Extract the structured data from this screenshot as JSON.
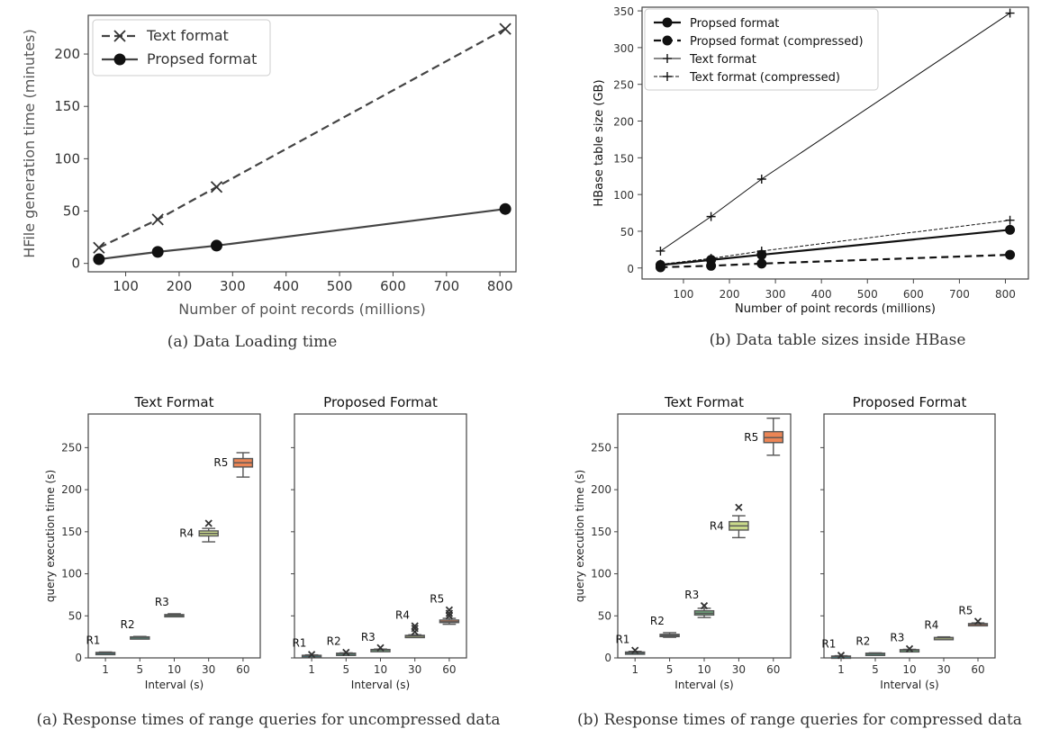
{
  "chart_data": [
    {
      "type": "line",
      "caption": "(a) Data Loading time",
      "xlabel": "Number of point records (millions)",
      "ylabel": "HFile generation time (minutes)",
      "xlim": [
        30,
        830
      ],
      "ylim": [
        -8,
        237
      ],
      "xticks": [
        100,
        200,
        300,
        400,
        500,
        600,
        700,
        800
      ],
      "yticks": [
        0,
        50,
        100,
        150,
        200
      ],
      "legend": "top-left",
      "grid": false,
      "series": [
        {
          "name": "Text format",
          "style": "dashed",
          "marker": "x",
          "x": [
            50,
            160,
            270,
            810
          ],
          "y": [
            15,
            42,
            73,
            224
          ]
        },
        {
          "name": "Propsed format",
          "style": "solid",
          "marker": "o",
          "x": [
            50,
            160,
            270,
            810
          ],
          "y": [
            4,
            11,
            17,
            52
          ]
        }
      ]
    },
    {
      "type": "line",
      "caption": "(b) Data table sizes inside HBase",
      "xlabel": "Number of point records (millions)",
      "ylabel": "HBase table size (GB)",
      "xlim": [
        10,
        850
      ],
      "ylim": [
        -15,
        355
      ],
      "xticks": [
        100,
        200,
        300,
        400,
        500,
        600,
        700,
        800
      ],
      "yticks": [
        0,
        50,
        100,
        150,
        200,
        250,
        300,
        350
      ],
      "legend": "top-left",
      "grid": false,
      "series": [
        {
          "name": "Propsed format",
          "style": "solid-bold",
          "marker": "o",
          "x": [
            50,
            160,
            270,
            810
          ],
          "y": [
            4,
            11,
            18,
            52
          ]
        },
        {
          "name": "Propsed format (compressed)",
          "style": "dashed-bold",
          "marker": "o",
          "x": [
            50,
            160,
            270,
            810
          ],
          "y": [
            1,
            3,
            6,
            18
          ]
        },
        {
          "name": "Text format",
          "style": "solid-thin",
          "marker": "+",
          "x": [
            50,
            160,
            270,
            810
          ],
          "y": [
            23,
            70,
            121,
            347
          ]
        },
        {
          "name": "Text format (compressed)",
          "style": "dashed-thin",
          "marker": "+",
          "x": [
            50,
            160,
            270,
            810
          ],
          "y": [
            5,
            13,
            23,
            65
          ]
        }
      ]
    },
    {
      "type": "box",
      "caption": "(a) Response times of range queries for uncompressed data",
      "ylabel": "query execution time (s)",
      "xlabel": "Interval (s)",
      "ylim": [
        0,
        290
      ],
      "yticks": [
        0,
        50,
        100,
        150,
        200,
        250
      ],
      "categories": [
        "1",
        "5",
        "10",
        "30",
        "60"
      ],
      "panels": [
        {
          "title": "Text Format",
          "boxes": [
            {
              "label": "R1",
              "color": "#3d6f73",
              "min": 5,
              "q1": 5.6,
              "median": 6,
              "q3": 6.5,
              "max": 7,
              "outliers": []
            },
            {
              "label": "R2",
              "color": "#4f8a77",
              "min": 23.5,
              "q1": 24,
              "median": 24.5,
              "q3": 25,
              "max": 25.5,
              "outliers": []
            },
            {
              "label": "R3",
              "color": "#72ac7e",
              "min": 49,
              "q1": 50,
              "median": 50.5,
              "q3": 51.5,
              "max": 52.5,
              "outliers": []
            },
            {
              "label": "R4",
              "color": "#c9d98a",
              "min": 138,
              "q1": 145,
              "median": 148,
              "q3": 151,
              "max": 154,
              "outliers": [
                160
              ]
            },
            {
              "label": "R5",
              "color": "#ec8555",
              "min": 215,
              "q1": 227,
              "median": 232,
              "q3": 237,
              "max": 244,
              "outliers": []
            }
          ]
        },
        {
          "title": "Proposed Format",
          "boxes": [
            {
              "label": "R1",
              "color": "#3d6f73",
              "min": 1.5,
              "q1": 2.2,
              "median": 2.6,
              "q3": 3.1,
              "max": 3.6,
              "outliers": [
                4
              ]
            },
            {
              "label": "R2",
              "color": "#4f8a77",
              "min": 4.2,
              "q1": 4.8,
              "median": 5.2,
              "q3": 5.6,
              "max": 6,
              "outliers": [
                6.5
              ]
            },
            {
              "label": "R3",
              "color": "#72ac7e",
              "min": 8.5,
              "q1": 9.2,
              "median": 9.6,
              "q3": 10,
              "max": 10.5,
              "outliers": [
                12
              ]
            },
            {
              "label": "R4",
              "color": "#c9d98a",
              "min": 24.5,
              "q1": 25.5,
              "median": 26,
              "q3": 26.8,
              "max": 27.5,
              "outliers": [
                31,
                35,
                38
              ]
            },
            {
              "label": "R5",
              "color": "#ec8555",
              "min": 40,
              "q1": 42,
              "median": 43,
              "q3": 45,
              "max": 47,
              "outliers": [
                50,
                53,
                57
              ]
            }
          ]
        }
      ]
    },
    {
      "type": "box",
      "caption": "(b) Response times of range queries for compressed data",
      "ylabel": "query execution time (s)",
      "xlabel": "Interval (s)",
      "ylim": [
        0,
        290
      ],
      "yticks": [
        0,
        50,
        100,
        150,
        200,
        250
      ],
      "categories": [
        "1",
        "5",
        "10",
        "30",
        "60"
      ],
      "panels": [
        {
          "title": "Text Format",
          "boxes": [
            {
              "label": "R1",
              "color": "#3d6f73",
              "min": 5,
              "q1": 5.8,
              "median": 6.3,
              "q3": 7,
              "max": 7.8,
              "outliers": [
                9
              ]
            },
            {
              "label": "R2",
              "color": "#4f8a77",
              "min": 24.5,
              "q1": 25.5,
              "median": 26.5,
              "q3": 28,
              "max": 30,
              "outliers": []
            },
            {
              "label": "R3",
              "color": "#72ac7e",
              "min": 48,
              "q1": 51,
              "median": 53,
              "q3": 56,
              "max": 59,
              "outliers": [
                62
              ]
            },
            {
              "label": "R4",
              "color": "#c9d98a",
              "min": 143,
              "q1": 152,
              "median": 157,
              "q3": 162,
              "max": 169,
              "outliers": [
                179
              ]
            },
            {
              "label": "R5",
              "color": "#ec8555",
              "min": 241,
              "q1": 256,
              "median": 262,
              "q3": 269,
              "max": 285,
              "outliers": []
            }
          ]
        },
        {
          "title": "Proposed Format",
          "boxes": [
            {
              "label": "R1",
              "color": "#3d6f73",
              "min": 1,
              "q1": 1.5,
              "median": 1.8,
              "q3": 2.2,
              "max": 2.6,
              "outliers": [
                3
              ]
            },
            {
              "label": "R2",
              "color": "#4f8a77",
              "min": 4.2,
              "q1": 4.8,
              "median": 5.2,
              "q3": 5.6,
              "max": 6,
              "outliers": []
            },
            {
              "label": "R3",
              "color": "#72ac7e",
              "min": 8.5,
              "q1": 9,
              "median": 9.4,
              "q3": 9.8,
              "max": 10.2,
              "outliers": [
                10.8
              ]
            },
            {
              "label": "R4",
              "color": "#c9d98a",
              "min": 22.5,
              "q1": 23.3,
              "median": 23.8,
              "q3": 24.3,
              "max": 25,
              "outliers": []
            },
            {
              "label": "R5",
              "color": "#ec8555",
              "min": 38.5,
              "q1": 39.3,
              "median": 40,
              "q3": 40.8,
              "max": 41.6,
              "outliers": [
                43.5
              ]
            }
          ]
        }
      ]
    }
  ]
}
